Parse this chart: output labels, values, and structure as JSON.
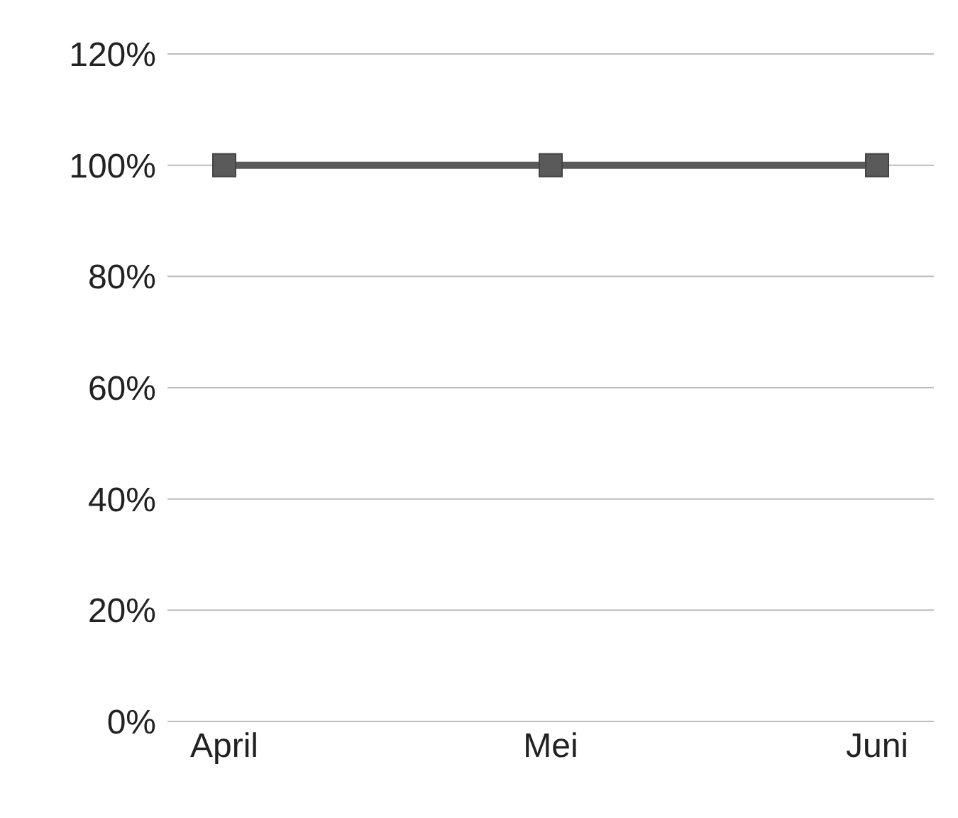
{
  "chart_data": {
    "type": "line",
    "categories": [
      "April",
      "Mei",
      "Juni"
    ],
    "series": [
      {
        "color": "#5a5a5a",
        "values": [
          100,
          100,
          100
        ]
      }
    ],
    "ylim": [
      0,
      120
    ],
    "yticks": [
      {
        "value": 0,
        "label": "0%"
      },
      {
        "value": 20,
        "label": "20%"
      },
      {
        "value": 40,
        "label": "40%"
      },
      {
        "value": 60,
        "label": "60%"
      },
      {
        "value": 80,
        "label": "80%"
      },
      {
        "value": 100,
        "label": "100%"
      },
      {
        "value": 120,
        "label": "120%"
      }
    ],
    "grid": "y",
    "marker": "square",
    "legend": false
  }
}
